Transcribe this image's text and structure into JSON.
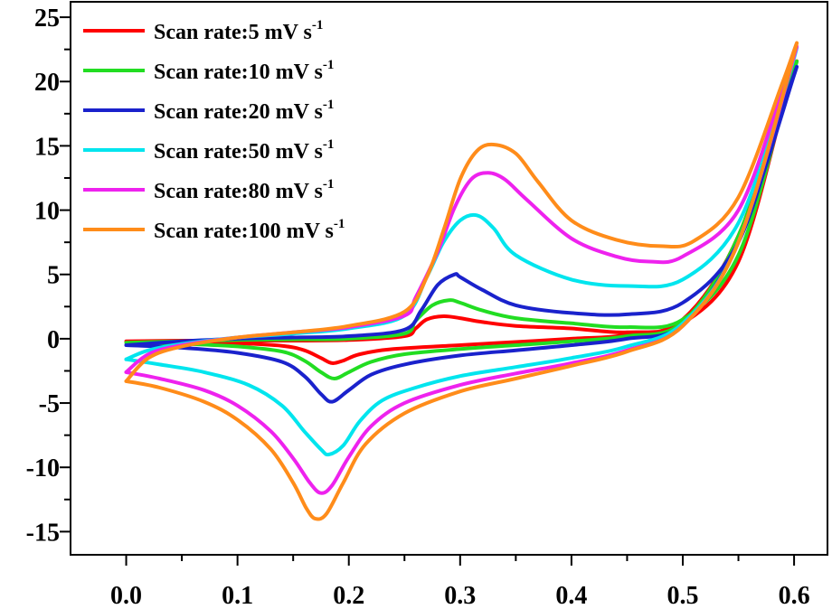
{
  "chart_data": {
    "type": "line",
    "title": "",
    "xlabel": "",
    "ylabel": "",
    "xlim": [
      -0.05,
      0.63
    ],
    "ylim": [
      -16.8,
      26.2
    ],
    "x_ticks": [
      0.0,
      0.1,
      0.2,
      0.3,
      0.4,
      0.5,
      0.6
    ],
    "x_tick_labels": [
      "0.0",
      "0.1",
      "0.2",
      "0.3",
      "0.4",
      "0.5",
      "0.6"
    ],
    "y_ticks": [
      -15,
      -10,
      -5,
      0,
      5,
      10,
      15,
      20,
      25
    ],
    "y_tick_labels": [
      "-15",
      "-10",
      "-5",
      "0",
      "5",
      "10",
      "15",
      "20",
      "25"
    ],
    "grid": false,
    "legend_position": "top-left",
    "legend_unit_base": "mV s",
    "legend_unit_exponent": "-1",
    "series": [
      {
        "name": "Scan rate:5 mV s-1",
        "legend_label": "Scan rate:5 mV s",
        "color": "#ff0000",
        "points": [
          [
            0.0,
            -0.2
          ],
          [
            0.05,
            -0.25
          ],
          [
            0.1,
            -0.35
          ],
          [
            0.14,
            -0.55
          ],
          [
            0.16,
            -0.9
          ],
          [
            0.175,
            -1.5
          ],
          [
            0.185,
            -1.9
          ],
          [
            0.195,
            -1.7
          ],
          [
            0.21,
            -1.2
          ],
          [
            0.24,
            -0.8
          ],
          [
            0.3,
            -0.5
          ],
          [
            0.35,
            -0.25
          ],
          [
            0.4,
            0.0
          ],
          [
            0.45,
            0.3
          ],
          [
            0.5,
            1.5
          ],
          [
            0.55,
            8.0
          ],
          [
            0.6,
            21.0
          ],
          [
            0.59,
            18.0
          ],
          [
            0.55,
            6.0
          ],
          [
            0.5,
            1.2
          ],
          [
            0.45,
            0.5
          ],
          [
            0.4,
            0.8
          ],
          [
            0.35,
            1.0
          ],
          [
            0.32,
            1.3
          ],
          [
            0.3,
            1.6
          ],
          [
            0.285,
            1.75
          ],
          [
            0.27,
            1.5
          ],
          [
            0.26,
            0.8
          ],
          [
            0.25,
            0.2
          ],
          [
            0.2,
            -0.1
          ],
          [
            0.15,
            -0.15
          ],
          [
            0.1,
            -0.15
          ],
          [
            0.05,
            -0.15
          ],
          [
            0.0,
            -0.2
          ]
        ]
      },
      {
        "name": "Scan rate:10 mV s-1",
        "legend_label": "Scan rate:10 mV s",
        "color": "#22dd22",
        "points": [
          [
            0.0,
            -0.3
          ],
          [
            0.05,
            -0.4
          ],
          [
            0.1,
            -0.6
          ],
          [
            0.14,
            -1.0
          ],
          [
            0.16,
            -1.7
          ],
          [
            0.175,
            -2.6
          ],
          [
            0.187,
            -3.1
          ],
          [
            0.2,
            -2.6
          ],
          [
            0.22,
            -1.8
          ],
          [
            0.25,
            -1.2
          ],
          [
            0.3,
            -0.8
          ],
          [
            0.35,
            -0.5
          ],
          [
            0.4,
            -0.2
          ],
          [
            0.45,
            0.2
          ],
          [
            0.5,
            1.3
          ],
          [
            0.55,
            8.0
          ],
          [
            0.6,
            21.0
          ],
          [
            0.59,
            18.0
          ],
          [
            0.55,
            6.5
          ],
          [
            0.5,
            1.5
          ],
          [
            0.45,
            0.9
          ],
          [
            0.4,
            1.2
          ],
          [
            0.35,
            1.6
          ],
          [
            0.32,
            2.2
          ],
          [
            0.3,
            2.8
          ],
          [
            0.29,
            3.0
          ],
          [
            0.275,
            2.6
          ],
          [
            0.26,
            1.4
          ],
          [
            0.25,
            0.4
          ],
          [
            0.2,
            0.0
          ],
          [
            0.15,
            -0.05
          ],
          [
            0.1,
            -0.1
          ],
          [
            0.05,
            -0.2
          ],
          [
            0.0,
            -0.3
          ]
        ]
      },
      {
        "name": "Scan rate:20 mV s-1",
        "legend_label": "Scan rate:20 mV s",
        "color": "#1a22cc",
        "points": [
          [
            0.0,
            -0.5
          ],
          [
            0.05,
            -0.7
          ],
          [
            0.1,
            -1.1
          ],
          [
            0.14,
            -1.8
          ],
          [
            0.16,
            -2.9
          ],
          [
            0.175,
            -4.3
          ],
          [
            0.185,
            -4.9
          ],
          [
            0.2,
            -4.0
          ],
          [
            0.22,
            -2.8
          ],
          [
            0.25,
            -2.0
          ],
          [
            0.3,
            -1.3
          ],
          [
            0.35,
            -0.9
          ],
          [
            0.4,
            -0.5
          ],
          [
            0.45,
            0.0
          ],
          [
            0.5,
            1.1
          ],
          [
            0.55,
            7.5
          ],
          [
            0.6,
            20.5
          ],
          [
            0.59,
            18.0
          ],
          [
            0.55,
            7.5
          ],
          [
            0.5,
            2.8
          ],
          [
            0.45,
            1.9
          ],
          [
            0.4,
            2.0
          ],
          [
            0.35,
            2.6
          ],
          [
            0.32,
            3.8
          ],
          [
            0.3,
            4.8
          ],
          [
            0.295,
            5.0
          ],
          [
            0.28,
            4.2
          ],
          [
            0.265,
            2.2
          ],
          [
            0.25,
            0.7
          ],
          [
            0.2,
            0.2
          ],
          [
            0.15,
            0.1
          ],
          [
            0.1,
            0.0
          ],
          [
            0.05,
            -0.2
          ],
          [
            0.0,
            -0.5
          ]
        ]
      },
      {
        "name": "Scan rate:50 mV s-1",
        "legend_label": "Scan rate:50 mV s",
        "color": "#00e5ee",
        "points": [
          [
            0.0,
            -1.6
          ],
          [
            0.03,
            -2.0
          ],
          [
            0.07,
            -2.6
          ],
          [
            0.11,
            -3.6
          ],
          [
            0.14,
            -5.2
          ],
          [
            0.16,
            -7.2
          ],
          [
            0.175,
            -8.6
          ],
          [
            0.182,
            -9.0
          ],
          [
            0.195,
            -8.3
          ],
          [
            0.21,
            -6.4
          ],
          [
            0.23,
            -4.8
          ],
          [
            0.26,
            -3.8
          ],
          [
            0.3,
            -2.9
          ],
          [
            0.35,
            -2.2
          ],
          [
            0.4,
            -1.5
          ],
          [
            0.45,
            -0.6
          ],
          [
            0.5,
            1.2
          ],
          [
            0.55,
            7.5
          ],
          [
            0.6,
            22.0
          ],
          [
            0.59,
            19.0
          ],
          [
            0.55,
            9.0
          ],
          [
            0.5,
            4.6
          ],
          [
            0.45,
            4.1
          ],
          [
            0.4,
            4.6
          ],
          [
            0.35,
            6.5
          ],
          [
            0.33,
            8.6
          ],
          [
            0.315,
            9.6
          ],
          [
            0.3,
            9.2
          ],
          [
            0.285,
            7.5
          ],
          [
            0.27,
            4.8
          ],
          [
            0.25,
            1.8
          ],
          [
            0.2,
            0.8
          ],
          [
            0.15,
            0.4
          ],
          [
            0.1,
            0.1
          ],
          [
            0.05,
            -0.4
          ],
          [
            0.02,
            -0.9
          ],
          [
            0.0,
            -1.6
          ]
        ]
      },
      {
        "name": "Scan rate:80 mV s-1",
        "legend_label": "Scan rate:80 mV s",
        "color": "#ee22ee",
        "points": [
          [
            0.0,
            -2.6
          ],
          [
            0.03,
            -3.1
          ],
          [
            0.07,
            -4.0
          ],
          [
            0.1,
            -5.2
          ],
          [
            0.13,
            -7.2
          ],
          [
            0.15,
            -9.3
          ],
          [
            0.165,
            -11.2
          ],
          [
            0.175,
            -12.0
          ],
          [
            0.185,
            -11.4
          ],
          [
            0.2,
            -9.2
          ],
          [
            0.22,
            -6.8
          ],
          [
            0.25,
            -5.0
          ],
          [
            0.3,
            -3.6
          ],
          [
            0.35,
            -2.7
          ],
          [
            0.4,
            -1.9
          ],
          [
            0.45,
            -0.9
          ],
          [
            0.5,
            1.0
          ],
          [
            0.55,
            7.5
          ],
          [
            0.6,
            22.0
          ],
          [
            0.59,
            19.5
          ],
          [
            0.55,
            10.0
          ],
          [
            0.5,
            6.4
          ],
          [
            0.47,
            6.0
          ],
          [
            0.44,
            6.4
          ],
          [
            0.4,
            7.8
          ],
          [
            0.36,
            10.8
          ],
          [
            0.34,
            12.4
          ],
          [
            0.325,
            12.9
          ],
          [
            0.31,
            12.4
          ],
          [
            0.295,
            10.2
          ],
          [
            0.28,
            6.8
          ],
          [
            0.26,
            3.2
          ],
          [
            0.25,
            1.8
          ],
          [
            0.2,
            0.9
          ],
          [
            0.15,
            0.5
          ],
          [
            0.1,
            0.1
          ],
          [
            0.05,
            -0.5
          ],
          [
            0.02,
            -1.2
          ],
          [
            0.0,
            -2.6
          ]
        ]
      },
      {
        "name": "Scan rate:100 mV s-1",
        "legend_label": "Scan rate:100 mV s",
        "color": "#ff8c1a",
        "points": [
          [
            0.0,
            -3.3
          ],
          [
            0.03,
            -3.8
          ],
          [
            0.07,
            -4.9
          ],
          [
            0.1,
            -6.3
          ],
          [
            0.13,
            -8.6
          ],
          [
            0.15,
            -11.2
          ],
          [
            0.162,
            -13.2
          ],
          [
            0.17,
            -14.0
          ],
          [
            0.18,
            -13.6
          ],
          [
            0.195,
            -11.2
          ],
          [
            0.215,
            -8.2
          ],
          [
            0.25,
            -5.8
          ],
          [
            0.3,
            -4.1
          ],
          [
            0.35,
            -3.1
          ],
          [
            0.4,
            -2.1
          ],
          [
            0.45,
            -1.0
          ],
          [
            0.5,
            1.0
          ],
          [
            0.55,
            7.5
          ],
          [
            0.6,
            22.2
          ],
          [
            0.59,
            20.0
          ],
          [
            0.55,
            11.0
          ],
          [
            0.51,
            7.6
          ],
          [
            0.48,
            7.2
          ],
          [
            0.44,
            7.7
          ],
          [
            0.4,
            9.2
          ],
          [
            0.37,
            12.2
          ],
          [
            0.35,
            14.4
          ],
          [
            0.33,
            15.1
          ],
          [
            0.315,
            14.6
          ],
          [
            0.3,
            12.4
          ],
          [
            0.285,
            8.4
          ],
          [
            0.27,
            4.8
          ],
          [
            0.25,
            2.1
          ],
          [
            0.2,
            1.0
          ],
          [
            0.15,
            0.5
          ],
          [
            0.1,
            0.1
          ],
          [
            0.05,
            -0.6
          ],
          [
            0.02,
            -1.5
          ],
          [
            0.0,
            -3.3
          ]
        ]
      }
    ]
  }
}
